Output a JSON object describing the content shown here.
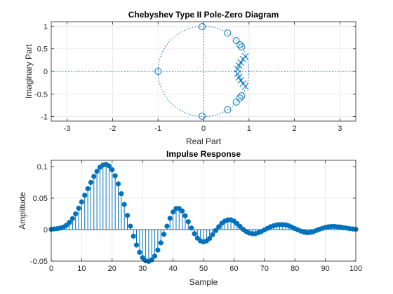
{
  "colors": {
    "accent": "#0072BD",
    "grid": "#e6e6e6",
    "axis": "#262626"
  },
  "chart_data": [
    {
      "type": "scatter",
      "title": "Chebyshev Type II Pole-Zero Diagram",
      "xlabel": "Real Part",
      "ylabel": "Imaginary Part",
      "xlim": [
        -3.35,
        3.35
      ],
      "ylim": [
        -1.1,
        1.1
      ],
      "xticks": [
        -3,
        -2,
        -1,
        0,
        1,
        2,
        3
      ],
      "xtick_labels": [
        "-3",
        "-2",
        "-1",
        "0",
        "1",
        "2",
        "3"
      ],
      "yticks": [
        -1,
        -0.5,
        0,
        0.5,
        1
      ],
      "ytick_labels": [
        "-1",
        "-0.5",
        "0",
        "0.5",
        "1"
      ],
      "grid": true,
      "unit_circle": true,
      "zeros": [
        [
          -1.0,
          0.0
        ],
        [
          -0.03,
          0.99
        ],
        [
          -0.03,
          -0.99
        ],
        [
          0.53,
          0.85
        ],
        [
          0.53,
          -0.85
        ],
        [
          0.72,
          0.68
        ],
        [
          0.72,
          -0.68
        ],
        [
          0.8,
          0.59
        ],
        [
          0.8,
          -0.59
        ],
        [
          0.84,
          0.54
        ],
        [
          0.84,
          -0.54
        ]
      ],
      "poles": [
        [
          0.92,
          0.33
        ],
        [
          0.92,
          -0.33
        ],
        [
          0.87,
          0.27
        ],
        [
          0.87,
          -0.27
        ],
        [
          0.82,
          0.2
        ],
        [
          0.82,
          -0.2
        ],
        [
          0.78,
          0.13
        ],
        [
          0.78,
          -0.13
        ],
        [
          0.75,
          0.05
        ],
        [
          0.75,
          -0.05
        ]
      ]
    },
    {
      "type": "stem",
      "title": "Impulse Response",
      "xlabel": "Sample",
      "ylabel": "Amplitude",
      "xlim": [
        0,
        100
      ],
      "ylim": [
        -0.05,
        0.11
      ],
      "xticks": [
        0,
        10,
        20,
        30,
        40,
        50,
        60,
        70,
        80,
        90,
        100
      ],
      "xtick_labels": [
        "0",
        "10",
        "20",
        "30",
        "40",
        "50",
        "60",
        "70",
        "80",
        "90",
        "100"
      ],
      "yticks": [
        -0.05,
        0,
        0.05,
        0.1
      ],
      "ytick_labels": [
        "-0.05",
        "0",
        "0.05",
        "0.1"
      ],
      "grid": true,
      "x": [
        0,
        1,
        2,
        3,
        4,
        5,
        6,
        7,
        8,
        9,
        10,
        11,
        12,
        13,
        14,
        15,
        16,
        17,
        18,
        19,
        20,
        21,
        22,
        23,
        24,
        25,
        26,
        27,
        28,
        29,
        30,
        31,
        32,
        33,
        34,
        35,
        36,
        37,
        38,
        39,
        40,
        41,
        42,
        43,
        44,
        45,
        46,
        47,
        48,
        49,
        50,
        51,
        52,
        53,
        54,
        55,
        56,
        57,
        58,
        59,
        60,
        61,
        62,
        63,
        64,
        65,
        66,
        67,
        68,
        69,
        70,
        71,
        72,
        73,
        74,
        75,
        76,
        77,
        78,
        79,
        80,
        81,
        82,
        83,
        84,
        85,
        86,
        87,
        88,
        89,
        90,
        91,
        92,
        93,
        94,
        95,
        96,
        97,
        98,
        99,
        100
      ],
      "values": [
        0.0005,
        0.001,
        0.0015,
        0.0025,
        0.004,
        0.007,
        0.0115,
        0.0175,
        0.025,
        0.034,
        0.044,
        0.0545,
        0.065,
        0.075,
        0.0845,
        0.0925,
        0.099,
        0.1025,
        0.1035,
        0.101,
        0.095,
        0.0855,
        0.0725,
        0.057,
        0.04,
        0.0225,
        0.0055,
        -0.0105,
        -0.0245,
        -0.036,
        -0.0445,
        -0.0495,
        -0.0505,
        -0.048,
        -0.042,
        -0.0325,
        -0.021,
        -0.0075,
        0.0055,
        0.018,
        0.028,
        0.0335,
        0.0335,
        0.0295,
        0.022,
        0.0125,
        0.0025,
        -0.0065,
        -0.0135,
        -0.018,
        -0.0195,
        -0.018,
        -0.014,
        -0.008,
        -0.0015,
        0.0045,
        0.01,
        0.0135,
        0.0155,
        0.0155,
        0.0135,
        0.0095,
        0.005,
        0.0005,
        -0.003,
        -0.0055,
        -0.0065,
        -0.0065,
        -0.005,
        -0.003,
        -0.0005,
        0.002,
        0.0045,
        0.006,
        0.0075,
        0.008,
        0.008,
        0.0075,
        0.006,
        0.004,
        0.0015,
        -0.0005,
        -0.0025,
        -0.004,
        -0.005,
        -0.0045,
        -0.0035,
        -0.0015,
        0.0005,
        0.002,
        0.0035,
        0.0045,
        0.005,
        0.005,
        0.0045,
        0.004,
        0.003,
        0.0025,
        0.0015,
        0.001,
        0.0005
      ]
    }
  ]
}
